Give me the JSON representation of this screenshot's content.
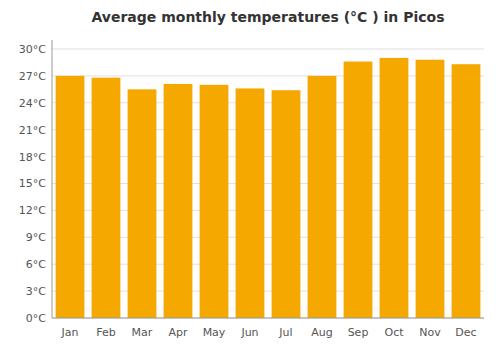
{
  "chart_data": {
    "type": "bar",
    "title": "Average monthly temperatures (°C ) in Picos",
    "categories": [
      "Jan",
      "Feb",
      "Mar",
      "Apr",
      "May",
      "Jun",
      "Jul",
      "Aug",
      "Sep",
      "Oct",
      "Nov",
      "Dec"
    ],
    "values": [
      27.0,
      26.8,
      25.5,
      26.1,
      26.0,
      25.6,
      25.4,
      27.0,
      28.6,
      29.0,
      28.8,
      28.3
    ],
    "color": "#F5A800",
    "ylim": [
      0,
      31
    ],
    "yticks": [
      {
        "value": 0,
        "label": "0°C"
      },
      {
        "value": 3,
        "label": "3°C"
      },
      {
        "value": 6,
        "label": "6°C"
      },
      {
        "value": 9,
        "label": "9°C"
      },
      {
        "value": 12,
        "label": "12°C"
      },
      {
        "value": 15,
        "label": "15°C"
      },
      {
        "value": 18,
        "label": "18°C"
      },
      {
        "value": 21,
        "label": "21°C"
      },
      {
        "value": 24,
        "label": "24°C"
      },
      {
        "value": 27,
        "label": "27°C"
      },
      {
        "value": 30,
        "label": "30°C"
      }
    ],
    "grid": true
  }
}
